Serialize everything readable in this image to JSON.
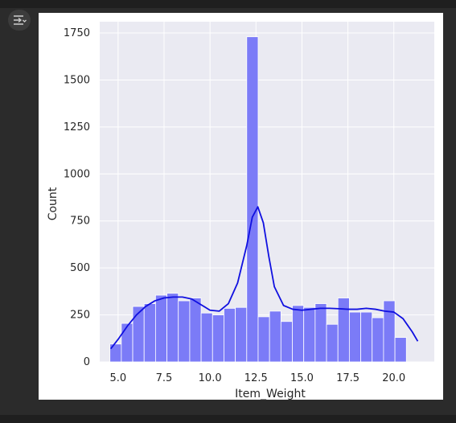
{
  "toolbar": {
    "output_icon": "collapse-output-icon"
  },
  "colors": {
    "plot_bg": "#eaeaf2",
    "grid": "#ffffff",
    "bar_fill": "#7b7bf7",
    "bar_edge": "#ffffff",
    "kde_line": "#1010e0",
    "text": "#262626"
  },
  "chart_data": {
    "type": "bar",
    "xlabel": "Item_Weight",
    "ylabel": "Count",
    "xlim": [
      4.0,
      22.2
    ],
    "ylim": [
      0,
      1810
    ],
    "xticks": [
      5.0,
      7.5,
      10.0,
      12.5,
      15.0,
      17.5,
      20.0
    ],
    "xtick_labels": [
      "5.0",
      "7.5",
      "10.0",
      "12.5",
      "15.0",
      "17.5",
      "20.0"
    ],
    "yticks": [
      0,
      250,
      500,
      750,
      1000,
      1250,
      1500,
      1750
    ],
    "ytick_labels": [
      "0",
      "250",
      "500",
      "750",
      "1000",
      "1250",
      "1500",
      "1750"
    ],
    "grid": true,
    "bin_start": 4.555,
    "bin_width": 0.6202,
    "values": [
      95,
      205,
      295,
      310,
      355,
      365,
      325,
      340,
      260,
      250,
      285,
      290,
      1730,
      240,
      270,
      215,
      300,
      290,
      310,
      200,
      340,
      265,
      265,
      235,
      325,
      130
    ],
    "kde": {
      "name": "",
      "x": [
        4.6,
        5.0,
        5.5,
        6.0,
        6.5,
        7.0,
        7.5,
        8.0,
        8.5,
        9.0,
        9.5,
        10.0,
        10.5,
        11.0,
        11.5,
        12.0,
        12.3,
        12.6,
        12.9,
        13.2,
        13.5,
        14.0,
        14.5,
        15.0,
        15.5,
        16.0,
        16.5,
        17.0,
        17.5,
        18.0,
        18.5,
        19.0,
        19.5,
        20.0,
        20.5,
        21.0,
        21.3
      ],
      "y": [
        70,
        120,
        190,
        250,
        295,
        325,
        340,
        345,
        345,
        335,
        305,
        275,
        270,
        310,
        420,
        620,
        770,
        825,
        740,
        560,
        400,
        300,
        280,
        275,
        280,
        285,
        285,
        283,
        280,
        280,
        285,
        280,
        270,
        265,
        230,
        160,
        110
      ]
    }
  }
}
